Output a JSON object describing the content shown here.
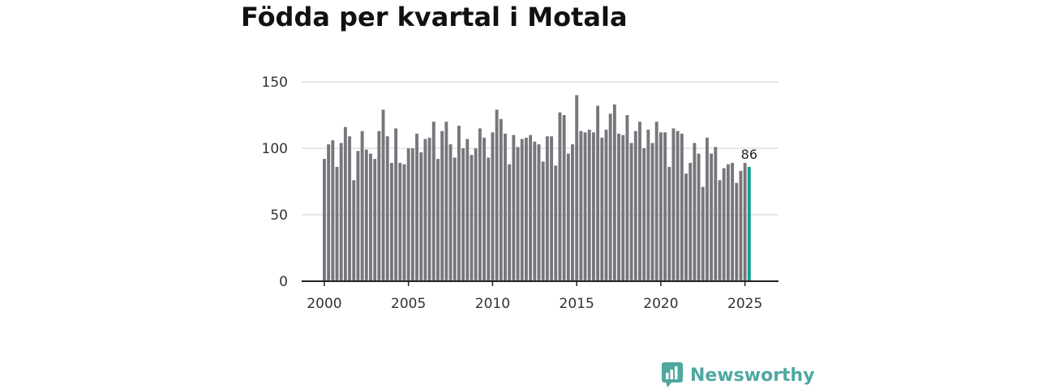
{
  "chart_data": {
    "type": "bar",
    "title": "Födda per kvartal i Motala",
    "xlabel": "",
    "ylabel": "",
    "ylim": [
      0,
      150
    ],
    "yticks": [
      0,
      50,
      100,
      150
    ],
    "xticks": [
      "2000",
      "2005",
      "2010",
      "2015",
      "2020",
      "2025"
    ],
    "start_year": 2000,
    "highlight_last": true,
    "last_value_label": "86",
    "bar_color": "#76767c",
    "highlight_color": "#139d96",
    "values": [
      92,
      103,
      106,
      86,
      104,
      116,
      109,
      76,
      98,
      113,
      99,
      96,
      92,
      113,
      129,
      109,
      89,
      115,
      89,
      88,
      100,
      100,
      111,
      97,
      107,
      108,
      120,
      92,
      113,
      120,
      103,
      93,
      117,
      100,
      107,
      95,
      100,
      115,
      108,
      93,
      112,
      129,
      122,
      111,
      88,
      110,
      101,
      107,
      108,
      110,
      105,
      103,
      90,
      109,
      109,
      87,
      127,
      125,
      96,
      103,
      140,
      113,
      112,
      114,
      112,
      132,
      108,
      114,
      126,
      133,
      111,
      110,
      125,
      104,
      113,
      120,
      100,
      114,
      104,
      120,
      112,
      112,
      86,
      115,
      113,
      111,
      81,
      89,
      104,
      96,
      71,
      108,
      96,
      101,
      76,
      85,
      88,
      89,
      74,
      83,
      89,
      86
    ]
  },
  "brand": {
    "name": "Newsworthy",
    "color": "#4fa8a0"
  }
}
